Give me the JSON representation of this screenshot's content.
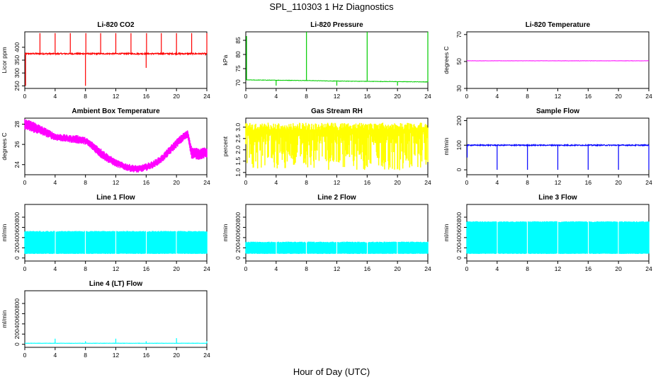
{
  "title": "SPL_110303  1 Hz Diagnostics",
  "xlabel": "Hour of Day (UTC)",
  "colors": {
    "red": "#ff0000",
    "green": "#00cc00",
    "magenta": "#ff00ff",
    "yellow": "#ffff00",
    "blue": "#0000ff",
    "cyan": "#00ffff"
  },
  "chart_data": [
    {
      "type": "line",
      "title": "Li-820 CO2",
      "ylabel": "Licor ppm",
      "color": "#ff0000",
      "xlim": [
        0,
        24
      ],
      "ylim": [
        240,
        460
      ],
      "xticks": [
        "0",
        "4",
        "8",
        "12",
        "16",
        "20",
        "24"
      ],
      "yticks": [
        "250",
        "300",
        "350",
        "400"
      ],
      "baseline": 375,
      "noise": 5,
      "spikes": [
        {
          "x": 0.1,
          "y": 250
        },
        {
          "x": 2.0,
          "y": 455
        },
        {
          "x": 4.0,
          "y": 455
        },
        {
          "x": 6.0,
          "y": 455
        },
        {
          "x": 8.0,
          "y": 250
        },
        {
          "x": 8.05,
          "y": 455
        },
        {
          "x": 10.0,
          "y": 455
        },
        {
          "x": 12.0,
          "y": 455
        },
        {
          "x": 14.0,
          "y": 455
        },
        {
          "x": 16.0,
          "y": 320
        },
        {
          "x": 16.05,
          "y": 455
        },
        {
          "x": 18.0,
          "y": 455
        },
        {
          "x": 20.0,
          "y": 455
        },
        {
          "x": 22.0,
          "y": 455
        },
        {
          "x": 24.0,
          "y": 455
        }
      ]
    },
    {
      "type": "line",
      "title": "Li-820 Pressure",
      "ylabel": "kPa",
      "color": "#00cc00",
      "xlim": [
        0,
        24
      ],
      "ylim": [
        68,
        88
      ],
      "xticks": [
        "0",
        "4",
        "8",
        "12",
        "16",
        "20",
        "24"
      ],
      "yticks": [
        "70",
        "75",
        "80",
        "85"
      ],
      "series": [
        {
          "x": [
            0,
            4,
            8,
            12,
            16,
            20,
            24
          ],
          "y": [
            71.0,
            70.9,
            70.8,
            70.6,
            70.5,
            70.4,
            70.3
          ]
        }
      ],
      "spikes": [
        {
          "x": 0.1,
          "y": 86.5
        },
        {
          "x": 8.0,
          "y": 88
        },
        {
          "x": 16.0,
          "y": 88
        },
        {
          "x": 24.0,
          "y": 88
        },
        {
          "x": 4.0,
          "y": 69
        },
        {
          "x": 12.0,
          "y": 69
        },
        {
          "x": 20.0,
          "y": 69
        }
      ]
    },
    {
      "type": "line",
      "title": "Li-820 Temperature",
      "ylabel": "degrees C",
      "color": "#ff00ff",
      "xlim": [
        0,
        24
      ],
      "ylim": [
        30,
        72
      ],
      "xticks": [
        "0",
        "4",
        "8",
        "12",
        "16",
        "20",
        "24"
      ],
      "yticks": [
        "30",
        "50",
        "70"
      ],
      "series": [
        {
          "x": [
            0,
            24
          ],
          "y": [
            50.5,
            50.5
          ]
        }
      ]
    },
    {
      "type": "area",
      "title": "Ambient Box Temperature",
      "ylabel": "degrees C",
      "color": "#ff00ff",
      "xlim": [
        0,
        24
      ],
      "ylim": [
        23.0,
        28.6
      ],
      "xticks": [
        "0",
        "4",
        "8",
        "12",
        "16",
        "20",
        "24"
      ],
      "yticks": [
        "24",
        "26",
        "28"
      ],
      "band_lower": {
        "x": [
          0,
          1,
          2,
          3,
          4,
          5,
          6,
          7,
          8,
          9,
          10,
          11,
          12,
          13,
          14,
          15,
          16,
          17,
          18,
          19,
          20,
          21,
          21.5,
          22,
          23,
          24
        ],
        "y": [
          27.6,
          27.3,
          27.1,
          26.8,
          26.5,
          26.4,
          26.3,
          26.2,
          26.1,
          25.5,
          24.8,
          24.3,
          23.9,
          23.6,
          23.4,
          23.3,
          23.5,
          23.8,
          24.3,
          25.0,
          25.8,
          26.5,
          26.7,
          24.7,
          24.6,
          24.8
        ]
      },
      "band_upper": {
        "x": [
          0,
          1,
          2,
          3,
          4,
          5,
          6,
          7,
          8,
          9,
          10,
          11,
          12,
          13,
          14,
          15,
          16,
          17,
          18,
          19,
          20,
          21,
          21.5,
          22,
          23,
          24
        ],
        "y": [
          28.4,
          28.2,
          27.8,
          27.4,
          27.0,
          26.9,
          26.8,
          26.8,
          26.6,
          26.1,
          25.5,
          24.9,
          24.4,
          24.1,
          23.9,
          23.8,
          24.0,
          24.3,
          24.8,
          25.6,
          26.4,
          27.1,
          27.3,
          25.6,
          25.5,
          25.6
        ]
      }
    },
    {
      "type": "area",
      "title": "Gas Stream RH",
      "ylabel": "percent",
      "color": "#ffff00",
      "xlim": [
        0,
        24
      ],
      "ylim": [
        0.9,
        3.4
      ],
      "xticks": [
        "0",
        "4",
        "8",
        "12",
        "16",
        "20",
        "24"
      ],
      "yticks": [
        "1.0",
        "1.5",
        "2.0",
        "2.5",
        "3.0"
      ],
      "band_upper_value": 3.2,
      "band_mid_value": 2.2,
      "band_lower_value": 1.1
    },
    {
      "type": "line",
      "title": "Sample Flow",
      "ylabel": "ml/min",
      "color": "#0000ff",
      "xlim": [
        0,
        24
      ],
      "ylim": [
        -20,
        210
      ],
      "xticks": [
        "0",
        "4",
        "8",
        "12",
        "16",
        "20",
        "24"
      ],
      "yticks": [
        "0",
        "100",
        "200"
      ],
      "baseline": 100,
      "noise": 4,
      "spikes": [
        {
          "x": 0.05,
          "y": 50
        },
        {
          "x": 4.0,
          "y": 0
        },
        {
          "x": 8.0,
          "y": 0
        },
        {
          "x": 12.0,
          "y": 0
        },
        {
          "x": 16.0,
          "y": 0
        },
        {
          "x": 20.0,
          "y": 0
        },
        {
          "x": 24.0,
          "y": 0
        }
      ]
    },
    {
      "type": "area",
      "title": "Line 1 Flow",
      "ylabel": "ml/min",
      "color": "#00ffff",
      "xlim": [
        0,
        24
      ],
      "ylim": [
        -60,
        1050
      ],
      "xticks": [
        "0",
        "4",
        "8",
        "12",
        "16",
        "20",
        "24"
      ],
      "yticks": [
        "0",
        "200",
        "400",
        "600",
        "800"
      ],
      "band_upper_value": 530,
      "band_lower_value": 80,
      "gaps": [
        4,
        8,
        12,
        16,
        20
      ]
    },
    {
      "type": "area",
      "title": "Line 2 Flow",
      "ylabel": "ml/min",
      "color": "#00ffff",
      "xlim": [
        0,
        24
      ],
      "ylim": [
        -60,
        1050
      ],
      "xticks": [
        "0",
        "4",
        "8",
        "12",
        "16",
        "20",
        "24"
      ],
      "yticks": [
        "0",
        "200",
        "400",
        "600",
        "800"
      ],
      "band_upper_value": 320,
      "band_lower_value": 80,
      "gaps": [
        4,
        8,
        12,
        16,
        20
      ]
    },
    {
      "type": "area",
      "title": "Line 3 Flow",
      "ylabel": "ml/min",
      "color": "#00ffff",
      "xlim": [
        0,
        24
      ],
      "ylim": [
        -60,
        1050
      ],
      "xticks": [
        "0",
        "4",
        "8",
        "12",
        "16",
        "20",
        "24"
      ],
      "yticks": [
        "0",
        "200",
        "400",
        "600",
        "800"
      ],
      "band_upper_value": 720,
      "band_lower_value": 80,
      "gaps": [
        4,
        8,
        12,
        16,
        20
      ]
    },
    {
      "type": "line",
      "title": "Line 4 (LT) Flow",
      "ylabel": "ml/min",
      "color": "#00ffff",
      "xlim": [
        0,
        24
      ],
      "ylim": [
        -60,
        1050
      ],
      "xticks": [
        "0",
        "4",
        "8",
        "12",
        "16",
        "20",
        "24"
      ],
      "yticks": [
        "0",
        "200",
        "400",
        "600",
        "800"
      ],
      "baseline": 20,
      "noise": 4,
      "spikes": [
        {
          "x": 4.0,
          "y": 110
        },
        {
          "x": 8.0,
          "y": 60
        },
        {
          "x": 12.0,
          "y": 110
        },
        {
          "x": 16.0,
          "y": 60
        },
        {
          "x": 20.0,
          "y": 120
        },
        {
          "x": 24.0,
          "y": 60
        }
      ]
    }
  ]
}
